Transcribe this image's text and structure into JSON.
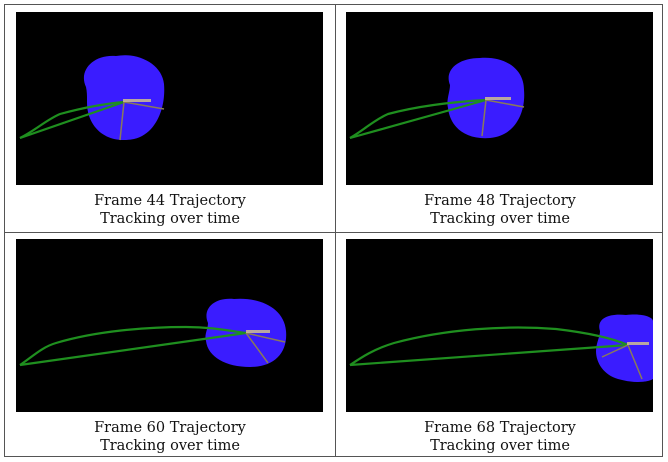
{
  "panels": [
    {
      "title": "Frame 44 Trajectory",
      "subtitle": "Tracking over time"
    },
    {
      "title": "Frame 48 Trajectory",
      "subtitle": "Tracking over time"
    },
    {
      "title": "Frame 60 Trajectory",
      "subtitle": "Tracking over time"
    },
    {
      "title": "Frame 68 Trajectory",
      "subtitle": "Tracking over time"
    }
  ],
  "colors": {
    "background": "#000000",
    "blob": "#3a1cff",
    "trajectory": "#1f8f1f",
    "axis": "#8a7a5a",
    "label": "#d9c98a"
  }
}
